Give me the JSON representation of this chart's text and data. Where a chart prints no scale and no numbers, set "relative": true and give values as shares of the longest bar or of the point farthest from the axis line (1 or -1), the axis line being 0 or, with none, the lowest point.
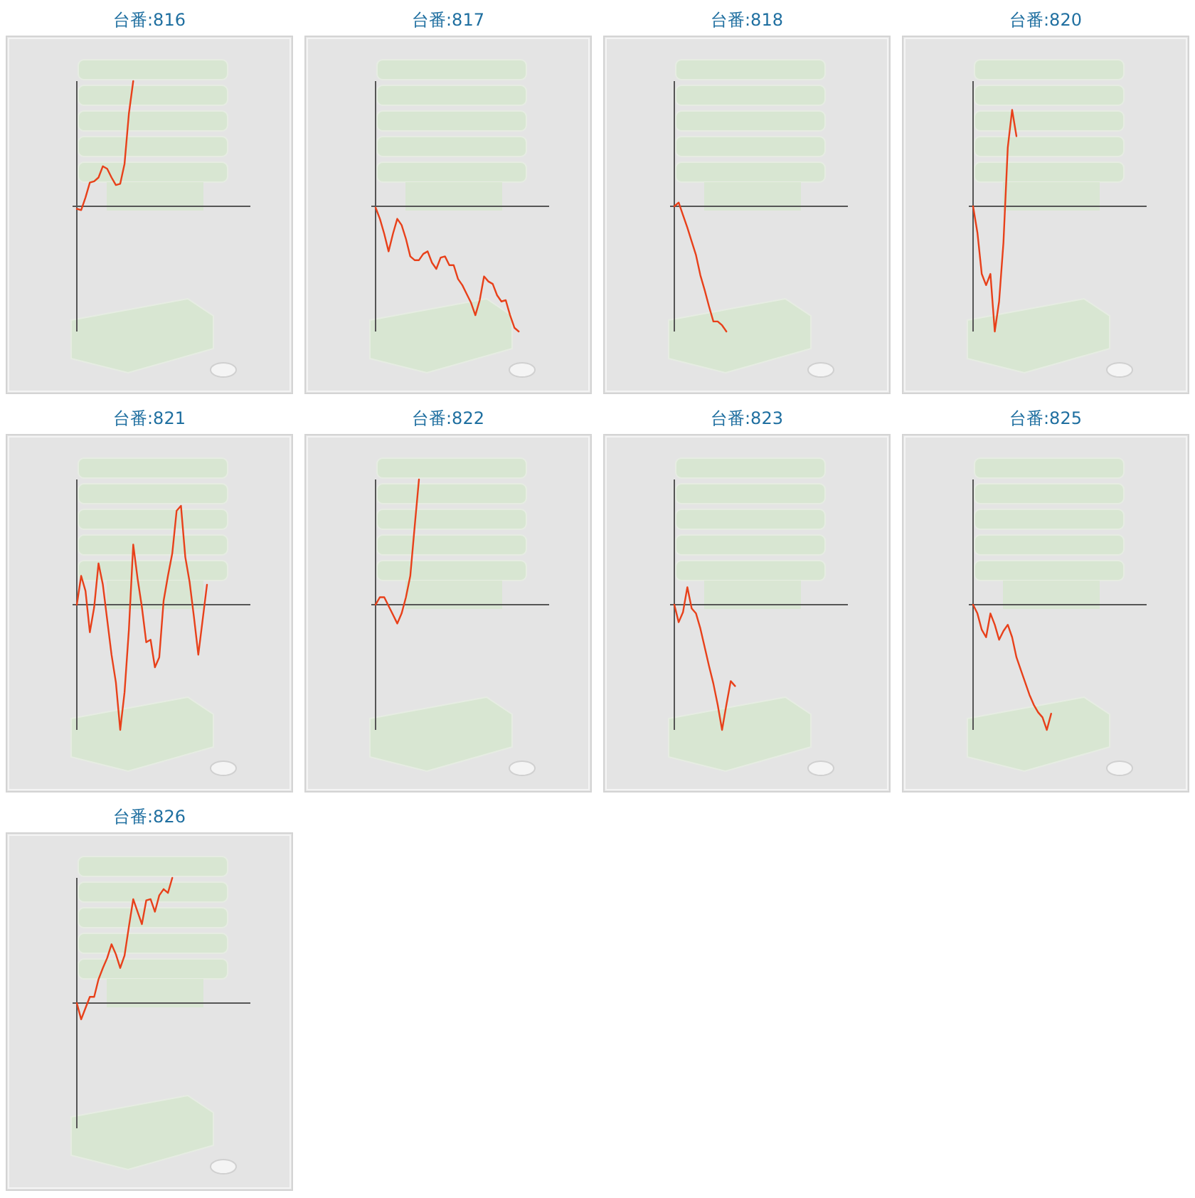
{
  "chart_data": [
    {
      "type": "line",
      "title": "台番:816",
      "relative": true,
      "categories": [
        null,
        null,
        null,
        null,
        null,
        null,
        null,
        null,
        null,
        null,
        null,
        null,
        null,
        null,
        null,
        null,
        null,
        null,
        null,
        null,
        null,
        null,
        null,
        null,
        null,
        null,
        null,
        null,
        null,
        null,
        null,
        null,
        null,
        null,
        null,
        null,
        null,
        null,
        null,
        null,
        null
      ],
      "series": [
        {
          "color": "#e8401a",
          "values": [
            -0.02,
            -0.03,
            0.07,
            0.19,
            0.2,
            0.23,
            0.32,
            0.3,
            0.23,
            0.17,
            0.18,
            0.34,
            0.74,
            1,
            null,
            null,
            null,
            null,
            null,
            null,
            null,
            null,
            null,
            null,
            null,
            null,
            null,
            null,
            null,
            null,
            null,
            null,
            null,
            null,
            null,
            null,
            null,
            null,
            null,
            null,
            null
          ]
        }
      ]
    },
    {
      "type": "line",
      "title": "台番:817",
      "relative": true,
      "categories": [
        null,
        null,
        null,
        null,
        null,
        null,
        null,
        null,
        null,
        null,
        null,
        null,
        null,
        null,
        null,
        null,
        null,
        null,
        null,
        null,
        null,
        null,
        null,
        null,
        null,
        null,
        null,
        null,
        null,
        null,
        null,
        null,
        null,
        null,
        null,
        null,
        null,
        null,
        null,
        null,
        null
      ],
      "series": [
        {
          "color": "#e8401a",
          "values": [
            -0.01,
            -0.1,
            -0.22,
            -0.36,
            -0.22,
            -0.1,
            -0.15,
            -0.26,
            -0.4,
            -0.43,
            -0.43,
            -0.38,
            -0.36,
            -0.45,
            -0.5,
            -0.41,
            -0.4,
            -0.47,
            -0.47,
            -0.58,
            -0.63,
            -0.7,
            -0.77,
            -0.87,
            -0.75,
            -0.56,
            -0.6,
            -0.62,
            -0.71,
            -0.76,
            -0.75,
            -0.87,
            -0.97,
            -1,
            null,
            null,
            null,
            null,
            null,
            null,
            null
          ]
        }
      ]
    },
    {
      "type": "line",
      "title": "台番:818",
      "relative": true,
      "categories": [
        null,
        null,
        null,
        null,
        null,
        null,
        null,
        null,
        null,
        null,
        null,
        null,
        null,
        null,
        null,
        null,
        null,
        null,
        null,
        null,
        null,
        null,
        null,
        null,
        null,
        null,
        null,
        null,
        null,
        null,
        null,
        null,
        null,
        null,
        null,
        null,
        null,
        null,
        null,
        null,
        null
      ],
      "series": [
        {
          "color": "#e8401a",
          "values": [
            0,
            0.03,
            -0.07,
            -0.17,
            -0.28,
            -0.39,
            -0.55,
            -0.67,
            -0.8,
            -0.92,
            -0.92,
            -0.95,
            -1,
            null,
            null,
            null,
            null,
            null,
            null,
            null,
            null,
            null,
            null,
            null,
            null,
            null,
            null,
            null,
            null,
            null,
            null,
            null,
            null,
            null,
            null,
            null,
            null,
            null,
            null,
            null,
            null
          ]
        }
      ]
    },
    {
      "type": "line",
      "title": "台番:820",
      "relative": true,
      "categories": [
        null,
        null,
        null,
        null,
        null,
        null,
        null,
        null,
        null,
        null,
        null,
        null,
        null,
        null,
        null,
        null,
        null,
        null,
        null,
        null,
        null,
        null,
        null,
        null,
        null,
        null,
        null,
        null,
        null,
        null,
        null,
        null,
        null,
        null,
        null,
        null,
        null,
        null,
        null,
        null,
        null
      ],
      "series": [
        {
          "color": "#e8401a",
          "values": [
            0,
            -0.21,
            -0.54,
            -0.63,
            -0.54,
            -1,
            -0.76,
            -0.29,
            0.47,
            0.77,
            0.56,
            null,
            null,
            null,
            null,
            null,
            null,
            null,
            null,
            null,
            null,
            null,
            null,
            null,
            null,
            null,
            null,
            null,
            null,
            null,
            null,
            null,
            null,
            null,
            null,
            null,
            null,
            null,
            null,
            null,
            null
          ]
        }
      ]
    },
    {
      "type": "line",
      "title": "台番:821",
      "relative": true,
      "categories": [
        null,
        null,
        null,
        null,
        null,
        null,
        null,
        null,
        null,
        null,
        null,
        null,
        null,
        null,
        null,
        null,
        null,
        null,
        null,
        null,
        null,
        null,
        null,
        null,
        null,
        null,
        null,
        null,
        null,
        null,
        null,
        null,
        null,
        null,
        null,
        null,
        null,
        null,
        null,
        null,
        null
      ],
      "series": [
        {
          "color": "#e8401a",
          "values": [
            0,
            0.23,
            0.11,
            -0.22,
            -0.02,
            0.33,
            0.16,
            -0.12,
            -0.4,
            -0.62,
            -1,
            -0.7,
            -0.2,
            0.48,
            0.21,
            -0.02,
            -0.3,
            -0.28,
            -0.5,
            -0.42,
            0.03,
            0.23,
            0.41,
            0.75,
            0.79,
            0.38,
            0.18,
            -0.1,
            -0.4,
            -0.12,
            0.16,
            null,
            null,
            null,
            null,
            null,
            null,
            null,
            null,
            null,
            null
          ]
        }
      ]
    },
    {
      "type": "line",
      "title": "台番:822",
      "relative": true,
      "categories": [
        null,
        null,
        null,
        null,
        null,
        null,
        null,
        null,
        null,
        null,
        null,
        null,
        null,
        null,
        null,
        null,
        null,
        null,
        null,
        null,
        null,
        null,
        null,
        null,
        null,
        null,
        null,
        null,
        null,
        null,
        null,
        null,
        null,
        null,
        null,
        null,
        null,
        null,
        null,
        null,
        null
      ],
      "series": [
        {
          "color": "#e8401a",
          "values": [
            0,
            0.06,
            0.06,
            -0.01,
            -0.08,
            -0.15,
            -0.07,
            0.06,
            0.23,
            0.62,
            1,
            null,
            null,
            null,
            null,
            null,
            null,
            null,
            null,
            null,
            null,
            null,
            null,
            null,
            null,
            null,
            null,
            null,
            null,
            null,
            null,
            null,
            null,
            null,
            null,
            null,
            null,
            null,
            null,
            null,
            null
          ]
        }
      ]
    },
    {
      "type": "line",
      "title": "台番:823",
      "relative": true,
      "categories": [
        null,
        null,
        null,
        null,
        null,
        null,
        null,
        null,
        null,
        null,
        null,
        null,
        null,
        null,
        null,
        null,
        null,
        null,
        null,
        null,
        null,
        null,
        null,
        null,
        null,
        null,
        null,
        null,
        null,
        null,
        null,
        null,
        null,
        null,
        null,
        null,
        null,
        null,
        null,
        null,
        null
      ],
      "series": [
        {
          "color": "#e8401a",
          "values": [
            0,
            -0.14,
            -0.06,
            0.14,
            -0.03,
            -0.07,
            -0.19,
            -0.34,
            -0.49,
            -0.63,
            -0.8,
            -1,
            -0.8,
            -0.61,
            -0.65,
            null,
            null,
            null,
            null,
            null,
            null,
            null,
            null,
            null,
            null,
            null,
            null,
            null,
            null,
            null,
            null,
            null,
            null,
            null,
            null,
            null,
            null,
            null,
            null,
            null,
            null
          ]
        }
      ]
    },
    {
      "type": "line",
      "title": "台番:825",
      "relative": true,
      "categories": [
        null,
        null,
        null,
        null,
        null,
        null,
        null,
        null,
        null,
        null,
        null,
        null,
        null,
        null,
        null,
        null,
        null,
        null,
        null,
        null,
        null,
        null,
        null,
        null,
        null,
        null,
        null,
        null,
        null,
        null,
        null,
        null,
        null,
        null,
        null,
        null,
        null,
        null,
        null,
        null,
        null
      ],
      "series": [
        {
          "color": "#e8401a",
          "values": [
            0,
            -0.07,
            -0.2,
            -0.26,
            -0.07,
            -0.16,
            -0.28,
            -0.21,
            -0.16,
            -0.26,
            -0.42,
            -0.52,
            -0.62,
            -0.72,
            -0.8,
            -0.86,
            -0.9,
            -1,
            -0.87,
            null,
            null,
            null,
            null,
            null,
            null,
            null,
            null,
            null,
            null,
            null,
            null,
            null,
            null,
            null,
            null,
            null,
            null,
            null,
            null,
            null,
            null
          ]
        }
      ]
    },
    {
      "type": "line",
      "title": "台番:826",
      "relative": true,
      "categories": [
        null,
        null,
        null,
        null,
        null,
        null,
        null,
        null,
        null,
        null,
        null,
        null,
        null,
        null,
        null,
        null,
        null,
        null,
        null,
        null,
        null,
        null,
        null,
        null,
        null,
        null,
        null,
        null,
        null,
        null,
        null,
        null,
        null,
        null,
        null,
        null,
        null,
        null,
        null,
        null,
        null
      ],
      "series": [
        {
          "color": "#e8401a",
          "values": [
            0,
            -0.13,
            -0.04,
            0.05,
            0.05,
            0.19,
            0.28,
            0.36,
            0.47,
            0.39,
            0.28,
            0.38,
            0.61,
            0.83,
            0.73,
            0.63,
            0.82,
            0.83,
            0.73,
            0.86,
            0.91,
            0.88,
            1,
            null,
            null,
            null,
            null,
            null,
            null,
            null,
            null,
            null,
            null,
            null,
            null,
            null,
            null,
            null,
            null,
            null,
            null
          ]
        }
      ]
    }
  ]
}
